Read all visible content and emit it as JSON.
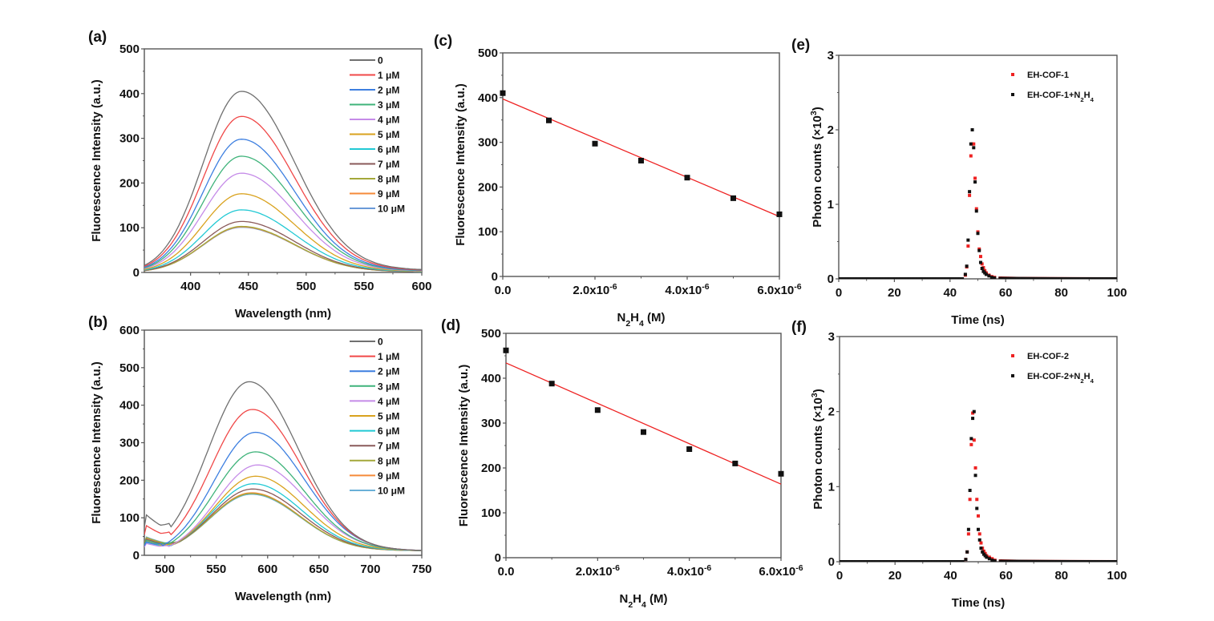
{
  "chart_data": [
    {
      "id": "a",
      "panel_label": "(a)",
      "type": "line",
      "xlabel": "Wavelength (nm)",
      "ylabel": "Fluorescence Intensity (a.u.)",
      "xlim": [
        360,
        600
      ],
      "ylim": [
        0,
        500
      ],
      "xticks": [
        "400",
        "450",
        "500",
        "550",
        "600"
      ],
      "xtick_values": [
        400,
        450,
        500,
        550,
        600
      ],
      "yticks": [
        "0",
        "100",
        "200",
        "300",
        "400",
        "500"
      ],
      "ytick_values": [
        0,
        100,
        200,
        300,
        400,
        500
      ],
      "legend_position": "top-right",
      "peak_wavelength": 444,
      "series": [
        {
          "name": "0",
          "peak": 405,
          "color": "#707070"
        },
        {
          "name": "1 μM",
          "peak": 349,
          "color": "#f04848"
        },
        {
          "name": "2 μM",
          "peak": 298,
          "color": "#3d7fe0"
        },
        {
          "name": "3 μM",
          "peak": 260,
          "color": "#3fb37a"
        },
        {
          "name": "4 μM",
          "peak": 222,
          "color": "#c58be8"
        },
        {
          "name": "5 μM",
          "peak": 176,
          "color": "#d9a21e"
        },
        {
          "name": "6 μM",
          "peak": 140,
          "color": "#22c9d4"
        },
        {
          "name": "7 μM",
          "peak": 114,
          "color": "#8a5a5a"
        },
        {
          "name": "8 μM",
          "peak": 103,
          "color": "#a4a83a"
        },
        {
          "name": "9 μM",
          "peak": 102,
          "color": "#f58a3a"
        },
        {
          "name": "10 μM",
          "peak": 101,
          "color": "#6a9ad8"
        }
      ]
    },
    {
      "id": "b",
      "panel_label": "(b)",
      "type": "line",
      "xlabel": "Wavelength (nm)",
      "ylabel": "Fluorescence Intensity (a.u.)",
      "xlim": [
        480,
        750
      ],
      "ylim": [
        0,
        600
      ],
      "xticks": [
        "500",
        "550",
        "600",
        "650",
        "700",
        "750"
      ],
      "xtick_values": [
        500,
        550,
        600,
        650,
        700,
        750
      ],
      "yticks": [
        "0",
        "100",
        "200",
        "300",
        "400",
        "500",
        "600"
      ],
      "ytick_values": [
        0,
        100,
        200,
        300,
        400,
        500,
        600
      ],
      "legend_position": "top-right",
      "series": [
        {
          "name": "0",
          "peak": 462,
          "peak_x": 582,
          "start": 75,
          "color": "#707070"
        },
        {
          "name": "1 μM",
          "peak": 388,
          "peak_x": 585,
          "start": 55,
          "color": "#f04848"
        },
        {
          "name": "2 μM",
          "peak": 327,
          "peak_x": 588,
          "start": 25,
          "color": "#3d7fe0"
        },
        {
          "name": "3 μM",
          "peak": 275,
          "peak_x": 588,
          "start": 28,
          "color": "#3fb37a"
        },
        {
          "name": "4 μM",
          "peak": 240,
          "peak_x": 590,
          "start": 22,
          "color": "#c58be8"
        },
        {
          "name": "5 μM",
          "peak": 210,
          "peak_x": 588,
          "start": 26,
          "color": "#d9a21e"
        },
        {
          "name": "6 μM",
          "peak": 190,
          "peak_x": 586,
          "start": 24,
          "color": "#22c9d4"
        },
        {
          "name": "7 μM",
          "peak": 176,
          "peak_x": 585,
          "start": 30,
          "color": "#8a5a5a"
        },
        {
          "name": "8 μM",
          "peak": 164,
          "peak_x": 584,
          "start": 33,
          "color": "#a4a83a"
        },
        {
          "name": "9 μM",
          "peak": 166,
          "peak_x": 584,
          "start": 32,
          "color": "#f58a3a"
        },
        {
          "name": "10 μM",
          "peak": 162,
          "peak_x": 584,
          "start": 34,
          "color": "#6ab0d8"
        }
      ]
    },
    {
      "id": "c",
      "panel_label": "(c)",
      "type": "scatter",
      "xlabel": "N2H4 (M)",
      "ylabel": "Fluorescence Intensity (a.u.)",
      "xlim": [
        0,
        6e-06
      ],
      "ylim": [
        0,
        500
      ],
      "xticks": [
        "0.0",
        "2.0x10-6",
        "4.0x10-6",
        "6.0x10-6"
      ],
      "xtick_values": [
        0,
        2e-06,
        4e-06,
        6e-06
      ],
      "yticks": [
        "0",
        "100",
        "200",
        "300",
        "400",
        "500"
      ],
      "ytick_values": [
        0,
        100,
        200,
        300,
        400,
        500
      ],
      "x": [
        0,
        1e-06,
        2e-06,
        3e-06,
        4e-06,
        5e-06,
        6e-06
      ],
      "y": [
        410,
        349,
        297,
        259,
        221,
        175,
        139
      ],
      "fit": {
        "x": [
          0,
          6e-06
        ],
        "y": [
          397,
          134
        ],
        "color": "#ee2222"
      }
    },
    {
      "id": "d",
      "panel_label": "(d)",
      "type": "scatter",
      "xlabel": "N2H4 (M)",
      "ylabel": "Fluorescence Intensity (a.u.)",
      "xlim": [
        0,
        6e-06
      ],
      "ylim": [
        0,
        500
      ],
      "xticks": [
        "0.0",
        "2.0x10-6",
        "4.0x10-6",
        "6.0x10-6"
      ],
      "xtick_values": [
        0,
        2e-06,
        4e-06,
        6e-06
      ],
      "yticks": [
        "0",
        "100",
        "200",
        "300",
        "400",
        "500"
      ],
      "ytick_values": [
        0,
        100,
        200,
        300,
        400,
        500
      ],
      "x": [
        0,
        1e-06,
        2e-06,
        3e-06,
        4e-06,
        5e-06,
        6e-06
      ],
      "y": [
        462,
        388,
        329,
        280,
        242,
        210,
        187
      ],
      "fit": {
        "x": [
          0,
          6e-06
        ],
        "y": [
          434,
          164
        ],
        "color": "#ee2222"
      }
    },
    {
      "id": "e",
      "panel_label": "(e)",
      "type": "scatter",
      "xlabel": "Time (ns)",
      "ylabel": "Photon counts (×10³)",
      "xlim": [
        0,
        100
      ],
      "ylim": [
        0,
        3
      ],
      "xticks": [
        "0",
        "20",
        "40",
        "60",
        "80",
        "100"
      ],
      "xtick_values": [
        0,
        20,
        40,
        60,
        80,
        100
      ],
      "yticks": [
        "0",
        "1",
        "2",
        "3"
      ],
      "ytick_values": [
        0,
        1,
        2,
        3
      ],
      "legend_position": "top-right",
      "series": [
        {
          "name": "EH-COF-1",
          "color": "#ee2222",
          "x": [
            45.5,
            46.0,
            46.5,
            47.0,
            47.5,
            48.0,
            48.5,
            49.0,
            49.5,
            50.0,
            50.5,
            51.0,
            51.5,
            52.0,
            52.5,
            53.0,
            54.0,
            55.0,
            56.0,
            58.0
          ],
          "y": [
            0.05,
            0.16,
            0.44,
            1.12,
            1.65,
            1.81,
            1.81,
            1.35,
            0.94,
            0.63,
            0.4,
            0.3,
            0.2,
            0.15,
            0.11,
            0.08,
            0.05,
            0.03,
            0.02,
            0.01
          ]
        },
        {
          "name": "EH-COF-1+N2H4",
          "color": "#111111",
          "x": [
            45.5,
            46.0,
            46.5,
            47.0,
            47.5,
            48.0,
            48.5,
            49.0,
            49.5,
            50.0,
            50.5,
            51.0,
            51.5,
            52.0,
            52.5,
            53.0,
            54.0,
            55.0,
            56.0,
            58.0
          ],
          "y": [
            0.06,
            0.17,
            0.52,
            1.17,
            1.81,
            2.0,
            1.76,
            1.3,
            0.91,
            0.61,
            0.38,
            0.22,
            0.14,
            0.1,
            0.08,
            0.06,
            0.04,
            0.02,
            0.01,
            0.005
          ]
        }
      ]
    },
    {
      "id": "f",
      "panel_label": "(f)",
      "type": "scatter",
      "xlabel": "Time (ns)",
      "ylabel": "Photon counts (×10³)",
      "xlim": [
        0,
        100
      ],
      "ylim": [
        0,
        3
      ],
      "xticks": [
        "0",
        "20",
        "40",
        "60",
        "80",
        "100"
      ],
      "xtick_values": [
        0,
        20,
        40,
        60,
        80,
        100
      ],
      "yticks": [
        "0",
        "1",
        "2",
        "3"
      ],
      "ytick_values": [
        0,
        1,
        2,
        3
      ],
      "legend_position": "top-right",
      "series": [
        {
          "name": "EH-COF-2",
          "color": "#ee2222",
          "x": [
            45.5,
            46.0,
            46.5,
            47.0,
            47.5,
            48.0,
            48.5,
            49.0,
            49.5,
            50.0,
            50.5,
            51.0,
            51.5,
            52.0,
            52.5,
            53.0,
            54.0,
            55.0,
            56.0,
            58.0
          ],
          "y": [
            0.03,
            0.13,
            0.37,
            0.83,
            1.56,
            1.98,
            1.62,
            1.25,
            0.83,
            0.61,
            0.37,
            0.25,
            0.18,
            0.14,
            0.11,
            0.08,
            0.06,
            0.04,
            0.02,
            0.01
          ]
        },
        {
          "name": "EH-COF-2+N2H4",
          "color": "#111111",
          "x": [
            45.5,
            46.0,
            46.5,
            47.0,
            47.5,
            48.0,
            48.5,
            49.0,
            49.5,
            50.0,
            50.5,
            51.0,
            51.5,
            52.0,
            52.5,
            53.0,
            54.0,
            55.0,
            56.0,
            58.0
          ],
          "y": [
            0.03,
            0.13,
            0.43,
            0.95,
            1.64,
            1.91,
            2.0,
            1.15,
            0.71,
            0.43,
            0.29,
            0.18,
            0.13,
            0.1,
            0.08,
            0.06,
            0.04,
            0.02,
            0.01,
            0.005
          ]
        }
      ]
    }
  ]
}
